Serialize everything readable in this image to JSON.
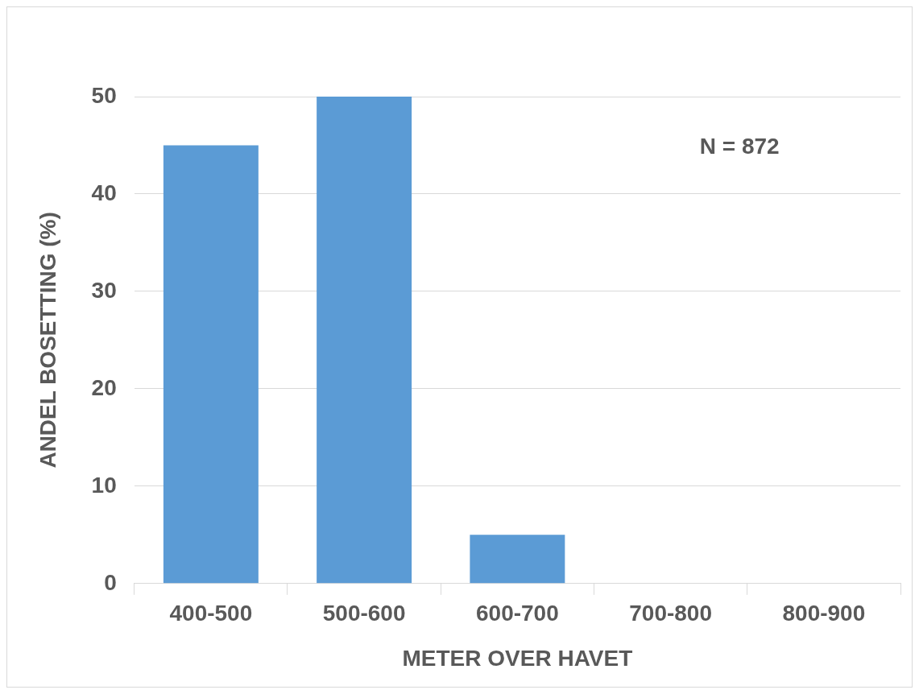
{
  "chart_data": {
    "type": "bar",
    "xlabel": "METER OVER HAVET",
    "ylabel": "ANDEL BOSETTING (%)",
    "categories": [
      "400-500",
      "500-600",
      "600-700",
      "700-800",
      "800-900"
    ],
    "values": [
      45,
      50,
      5,
      0,
      0
    ],
    "color": "#5b9bd5",
    "ylim": [
      0,
      50
    ],
    "yticks": [
      0,
      10,
      20,
      30,
      40,
      50
    ],
    "grid": "y",
    "legend": false,
    "annotations": [
      "N = 872"
    ]
  }
}
